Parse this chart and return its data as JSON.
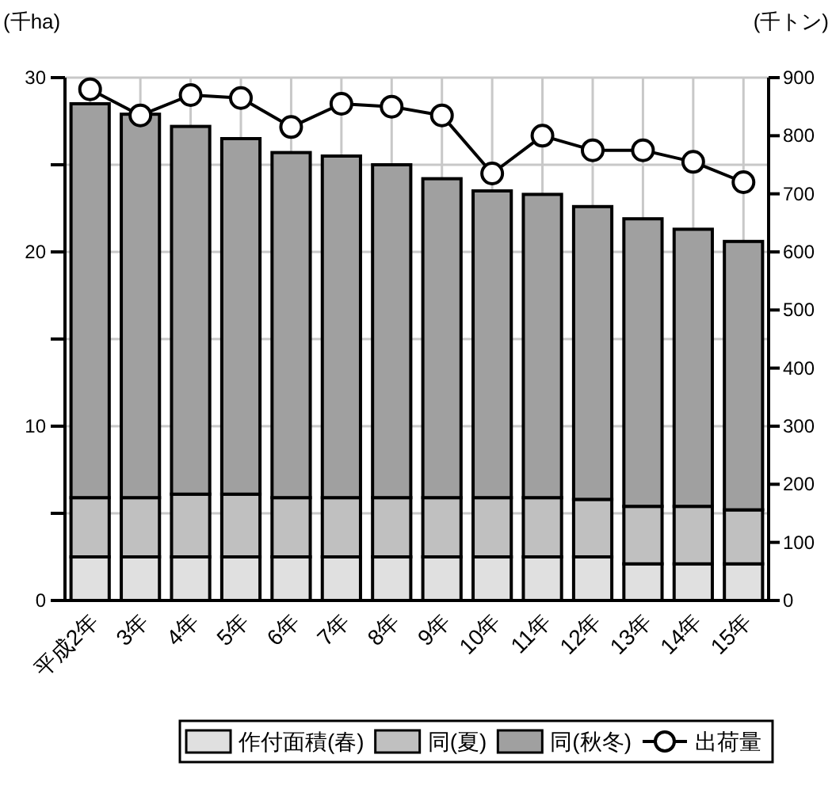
{
  "chart_data": {
    "type": "bar",
    "stacked": true,
    "ylabel": "(千ha)",
    "y2label": "(千トン)",
    "categories": [
      "平成2年",
      "3年",
      "4年",
      "5年",
      "6年",
      "7年",
      "8年",
      "9年",
      "10年",
      "11年",
      "12年",
      "13年",
      "14年",
      "15年"
    ],
    "series": [
      {
        "name": "作付面積(春)",
        "color": "#e0e0e0",
        "values": [
          2.5,
          2.5,
          2.5,
          2.5,
          2.5,
          2.5,
          2.5,
          2.5,
          2.5,
          2.5,
          2.5,
          2.1,
          2.1,
          2.1
        ]
      },
      {
        "name": "同(夏)",
        "color": "#c0c0c0",
        "values": [
          3.4,
          3.4,
          3.6,
          3.6,
          3.4,
          3.4,
          3.4,
          3.4,
          3.4,
          3.4,
          3.3,
          3.3,
          3.3,
          3.1
        ]
      },
      {
        "name": "同(秋冬)",
        "color": "#a0a0a0",
        "values": [
          22.6,
          22.0,
          21.1,
          20.4,
          19.8,
          19.6,
          19.1,
          18.3,
          17.6,
          17.4,
          16.8,
          16.5,
          15.9,
          15.4
        ]
      },
      {
        "name": "出荷量",
        "type": "line",
        "axis": "y2",
        "color": "#000000",
        "marker": "circle",
        "values": [
          880,
          835,
          870,
          865,
          815,
          855,
          850,
          835,
          735,
          800,
          775,
          775,
          755,
          720
        ]
      }
    ],
    "ylim": [
      0,
      30
    ],
    "yticks": [
      0,
      {
        "value": 5,
        "label": null
      },
      10,
      {
        "value": 15,
        "label": null
      },
      20,
      {
        "value": 25,
        "label": null
      },
      30
    ],
    "y2lim": [
      0,
      900
    ],
    "y2ticks": [
      0,
      100,
      200,
      300,
      400,
      500,
      600,
      700,
      800,
      900
    ],
    "grid": true,
    "legend": "bottom"
  }
}
